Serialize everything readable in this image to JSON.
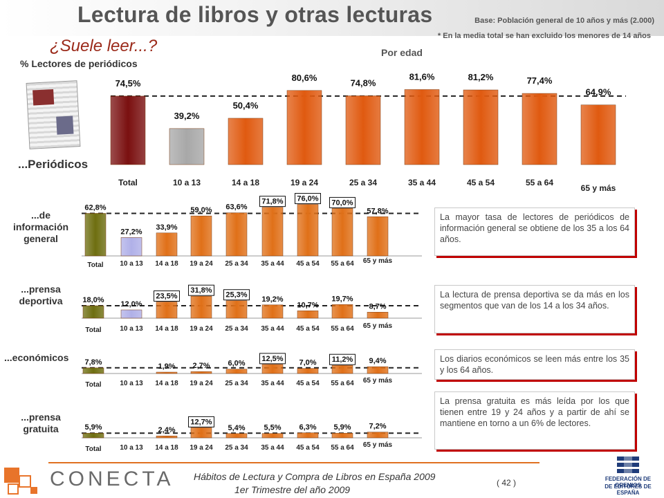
{
  "header": {
    "title": "Lectura de libros y otras lecturas",
    "base": "Base: Población general de 10 años y más (2.000)",
    "base_note": "* En la media total se han excluido los menores de 14 años",
    "subtitle": "¿Suele leer...?",
    "por_edad": "Por edad",
    "percent_label": "% Lectores de periódicos"
  },
  "colors": {
    "total_main": "#7a1010",
    "age_10_13_main": "#a8a8a8",
    "age_bars": "#e05a10",
    "total_small": "#6e6e10",
    "age_10_13_small": "#b0b0e8",
    "age_small": "#e07018",
    "note_shadow": "#c00000"
  },
  "notes": [
    "La mayor tasa de lectores de periódicos de información general se obtiene de los 35 a los 64 años.",
    "La lectura de prensa deportiva se da más en los segmentos que van de los 14 a los 34 años.",
    "Los diarios económicos se leen más entre los 35 y los 64 años.",
    "La prensa gratuita es más leída por los que tienen entre 19 y 24 años y a partir de ahí se mantiene en torno a un 6% de lectores."
  ],
  "footer": {
    "line1": "Hábitos de Lectura y Compra de Libros en España 2009",
    "line2": "1er Trimestre del año 2009",
    "page": "( 42 )",
    "left_logo": "CONECTA",
    "right_logo_line1": "FEDERACIÓN DE GREMIOS",
    "right_logo_line2": "DE EDITORES DE ESPAÑA"
  },
  "chart_data": [
    {
      "type": "bar",
      "name_label": "...Periódicos",
      "categories": [
        "Total",
        "10 a 13",
        "14 a 18",
        "19 a 24",
        "25 a 34",
        "35 a 44",
        "45 a 54",
        "55 a 64",
        "65 y más"
      ],
      "values": [
        74.5,
        39.2,
        50.4,
        80.6,
        74.8,
        81.6,
        81.2,
        77.4,
        64.9
      ],
      "labels": [
        "74,5%",
        "39,2%",
        "50,4%",
        "80,6%",
        "74,8%",
        "81,6%",
        "81,2%",
        "77,4%",
        "64,9%"
      ],
      "reference_line": 74.5,
      "highlight": []
    },
    {
      "type": "bar",
      "name_label": "...de información general",
      "categories": [
        "Total",
        "10 a 13",
        "14 a 18",
        "19 a 24",
        "25 a 34",
        "35 a 44",
        "45 a 54",
        "55 a 64",
        "65 y más"
      ],
      "values": [
        62.8,
        27.2,
        33.9,
        59.0,
        63.6,
        71.8,
        76.0,
        70.0,
        57.8
      ],
      "labels": [
        "62,8%",
        "27,2%",
        "33,9%",
        "59,0%",
        "63,6%",
        "71,8%",
        "76,0%",
        "70,0%",
        "57,8%"
      ],
      "reference_line": 62.8,
      "highlight": [
        5,
        6,
        7
      ]
    },
    {
      "type": "bar",
      "name_label": "...prensa deportiva",
      "categories": [
        "Total",
        "10 a 13",
        "14 a 18",
        "19 a 24",
        "25 a 34",
        "35 a 44",
        "45 a 54",
        "55 a 64",
        "65 y más"
      ],
      "values": [
        18.0,
        12.0,
        23.5,
        31.8,
        25.3,
        19.2,
        10.7,
        19.7,
        8.7
      ],
      "labels": [
        "18,0%",
        "12,0%",
        "23,5%",
        "31,8%",
        "25,3%",
        "19,2%",
        "10,7%",
        "19,7%",
        "8,7%"
      ],
      "reference_line": 18.0,
      "highlight": [
        2,
        3,
        4
      ]
    },
    {
      "type": "bar",
      "name_label": "...económicos",
      "categories": [
        "Total",
        "10 a 13",
        "14 a 18",
        "19 a 24",
        "25 a 34",
        "35 a 44",
        "45 a 54",
        "55 a 64",
        "65 y más"
      ],
      "values": [
        7.8,
        0,
        1.9,
        2.7,
        6.0,
        12.5,
        7.0,
        11.2,
        9.4
      ],
      "labels": [
        "7,8%",
        "",
        "1,9%",
        "2,7%",
        "6,0%",
        "12,5%",
        "7,0%",
        "11,2%",
        "9,4%"
      ],
      "reference_line": 7.8,
      "highlight": [
        5,
        7
      ]
    },
    {
      "type": "bar",
      "name_label": "...prensa gratuita",
      "categories": [
        "Total",
        "10 a 13",
        "14 a 18",
        "19 a 24",
        "25 a 34",
        "35 a 44",
        "45 a 54",
        "55 a 64",
        "65 y más"
      ],
      "values": [
        5.9,
        0,
        2.4,
        12.7,
        5.4,
        5.5,
        6.3,
        5.9,
        7.2
      ],
      "labels": [
        "5,9%",
        "",
        "2,4%",
        "12,7%",
        "5,4%",
        "5,5%",
        "6,3%",
        "5,9%",
        "7,2%"
      ],
      "reference_line": 5.9,
      "highlight": [
        3
      ]
    }
  ]
}
